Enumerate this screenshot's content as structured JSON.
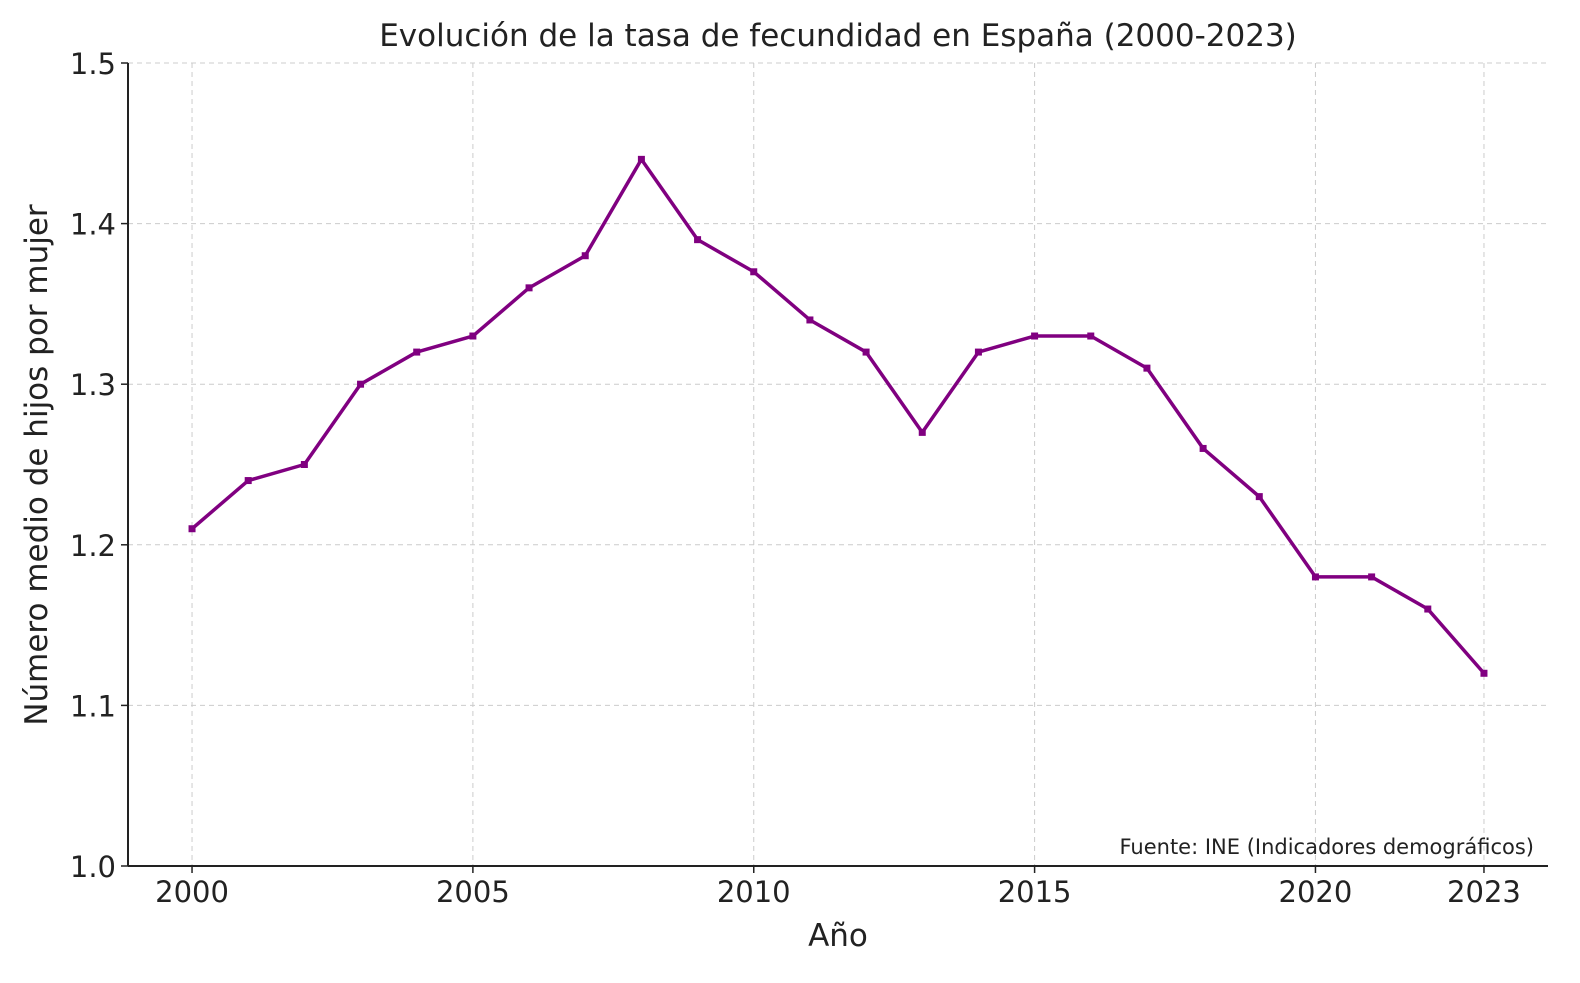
{
  "chart_data": {
    "type": "line",
    "title": "Evolución de la tasa de fecundidad en España (2000-2023)",
    "xlabel": "Año",
    "ylabel": "Número medio de hijos por mujer",
    "annotation": "Fuente: INE (Indicadores demográficos)",
    "x": [
      2000,
      2001,
      2002,
      2003,
      2004,
      2005,
      2006,
      2007,
      2008,
      2009,
      2010,
      2011,
      2012,
      2013,
      2014,
      2015,
      2016,
      2017,
      2018,
      2019,
      2020,
      2021,
      2022,
      2023
    ],
    "series": [
      {
        "name": "Tasa de fecundidad",
        "color": "#800080",
        "values": [
          1.21,
          1.24,
          1.25,
          1.3,
          1.32,
          1.33,
          1.36,
          1.38,
          1.44,
          1.39,
          1.37,
          1.34,
          1.32,
          1.27,
          1.32,
          1.33,
          1.33,
          1.31,
          1.26,
          1.23,
          1.18,
          1.18,
          1.16,
          1.12
        ]
      }
    ],
    "xlim": [
      1998.86,
      2024.14
    ],
    "ylim": [
      1.0,
      1.5
    ],
    "xticks": [
      "2000",
      "2005",
      "2010",
      "2015",
      "2020",
      "2023"
    ],
    "yticks": [
      "1.0",
      "1.1",
      "1.2",
      "1.3",
      "1.4",
      "1.5"
    ],
    "grid": true,
    "legend": "none"
  }
}
